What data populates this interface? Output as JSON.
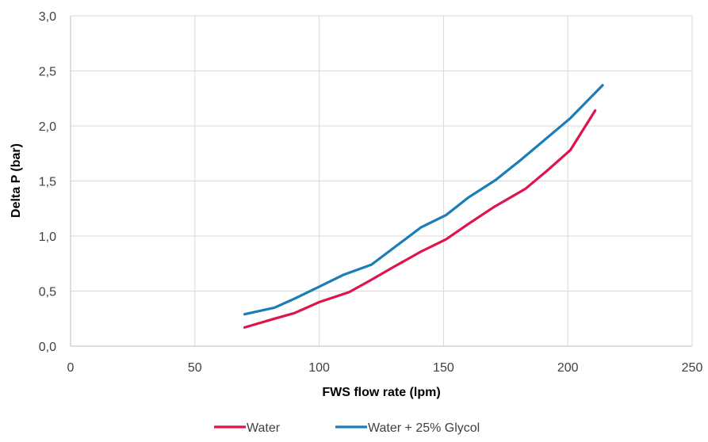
{
  "chart_data": {
    "type": "line",
    "title": "",
    "xlabel": "FWS flow rate (lpm)",
    "ylabel": "Delta P (bar)",
    "xlim": [
      0,
      250
    ],
    "ylim": [
      0,
      3.0
    ],
    "x_ticks": [
      "0",
      "50",
      "100",
      "150",
      "200",
      "250"
    ],
    "y_ticks": [
      "0,0",
      "0,5",
      "1,0",
      "1,5",
      "2,0",
      "2,5",
      "3,0"
    ],
    "grid": true,
    "legend_position": "bottom",
    "series": [
      {
        "name": "Water",
        "color": "#E0144C",
        "points": [
          [
            70,
            0.17
          ],
          [
            82,
            0.25
          ],
          [
            90,
            0.3
          ],
          [
            100,
            0.4
          ],
          [
            112,
            0.49
          ],
          [
            120,
            0.59
          ],
          [
            130,
            0.72
          ],
          [
            141,
            0.86
          ],
          [
            151,
            0.97
          ],
          [
            160,
            1.11
          ],
          [
            170,
            1.26
          ],
          [
            183,
            1.43
          ],
          [
            192,
            1.6
          ],
          [
            201,
            1.78
          ],
          [
            211,
            2.14
          ]
        ]
      },
      {
        "name": "Water + 25% Glycol",
        "color": "#1B7DB8",
        "points": [
          [
            70,
            0.29
          ],
          [
            82,
            0.35
          ],
          [
            90,
            0.43
          ],
          [
            100,
            0.54
          ],
          [
            110,
            0.65
          ],
          [
            121,
            0.74
          ],
          [
            131,
            0.91
          ],
          [
            141,
            1.08
          ],
          [
            151,
            1.19
          ],
          [
            160,
            1.35
          ],
          [
            171,
            1.51
          ],
          [
            181,
            1.69
          ],
          [
            191,
            1.88
          ],
          [
            201,
            2.07
          ],
          [
            214,
            2.37
          ]
        ]
      }
    ]
  }
}
